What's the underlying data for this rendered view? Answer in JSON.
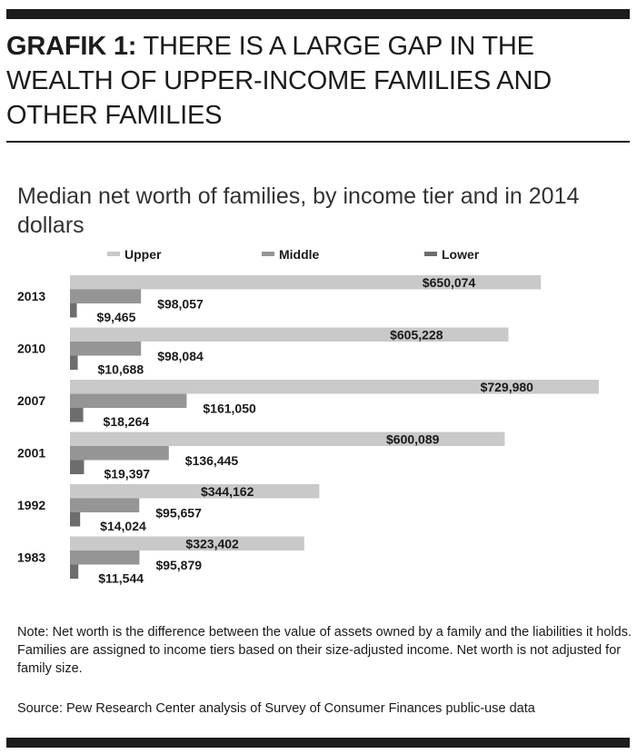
{
  "header": {
    "lead": "GRAFIK 1:",
    "rest": " THERE IS A LARGE GAP IN THE WEALTH OF UPPER-INCOME FAMILIES AND OTHER FAMILIES"
  },
  "chart_data": {
    "type": "bar",
    "orientation": "horizontal",
    "title": "Median net worth of families, by income tier and in 2014 dollars",
    "categories": [
      "2013",
      "2010",
      "2007",
      "2001",
      "1992",
      "1983"
    ],
    "series": [
      {
        "name": "Upper",
        "values": [
          650074,
          605228,
          729980,
          600089,
          344162,
          323402
        ],
        "labels": [
          "$650,074",
          "$605,228",
          "$729,980",
          "$600,089",
          "$344,162",
          "$323,402"
        ]
      },
      {
        "name": "Middle",
        "values": [
          98057,
          98084,
          161050,
          136445,
          95657,
          95879
        ],
        "labels": [
          "$98,057",
          "$98,084",
          "$161,050",
          "$136,445",
          "$95,657",
          "$95,879"
        ]
      },
      {
        "name": "Lower",
        "values": [
          9465,
          10688,
          18264,
          19397,
          14024,
          11544
        ],
        "labels": [
          "$9,465",
          "$10,688",
          "$18,264",
          "$19,397",
          "$14,024",
          "$11,544"
        ]
      }
    ],
    "xlim": [
      0,
      730000
    ],
    "grid": false,
    "legend": "top",
    "colors": {
      "Upper": "#c9c9c9",
      "Middle": "#959595",
      "Lower": "#6d6d6d"
    }
  },
  "footer": {
    "note": "Note: Net worth is the difference between the value of assets owned by a family and the liabilities it holds. Families are assigned to income tiers based on their size-adjusted income. Net worth is not adjusted for family size.",
    "source": "Source: Pew Research Center analysis of Survey of Consumer Finances public-use data"
  }
}
